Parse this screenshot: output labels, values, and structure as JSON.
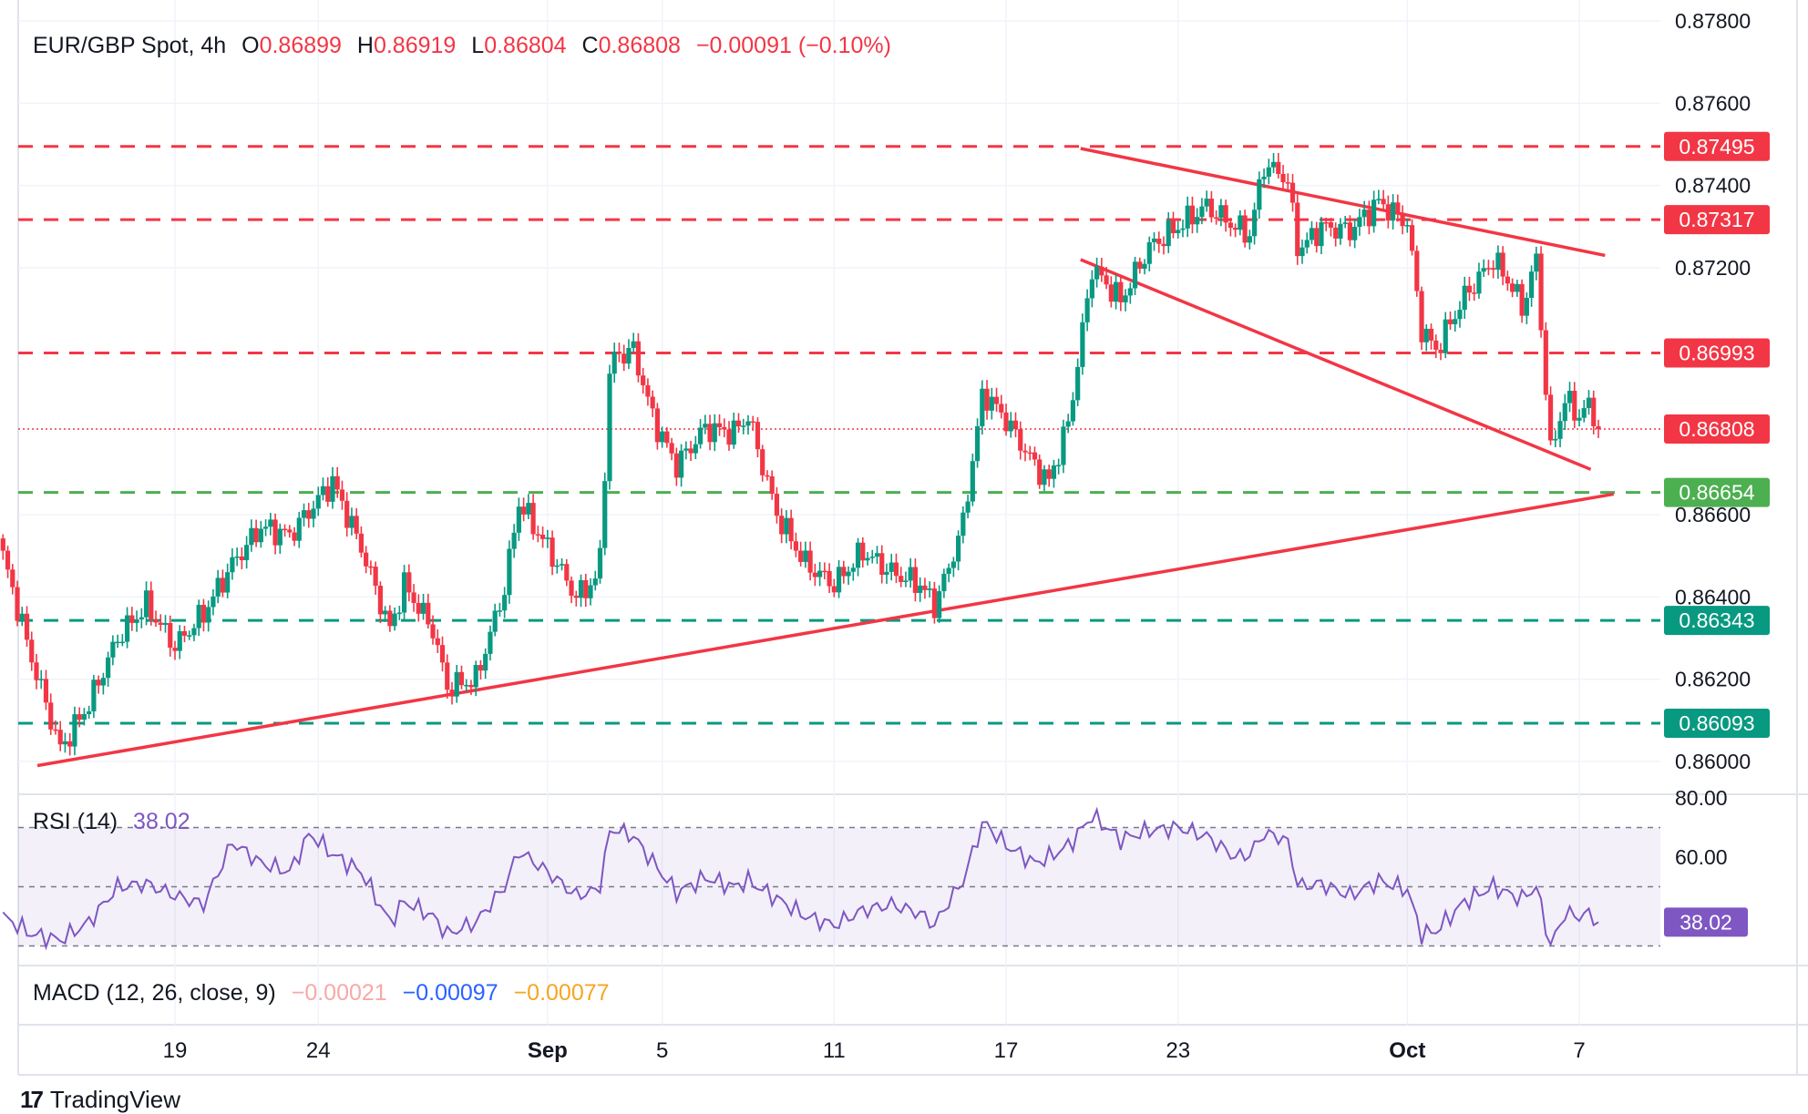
{
  "header": {
    "symbol": "EUR/GBP Spot, 4h",
    "o_label": "O",
    "o_value": "0.86899",
    "h_label": "H",
    "h_value": "0.86919",
    "l_label": "L",
    "l_value": "0.86804",
    "c_label": "C",
    "c_value": "0.86808",
    "change": "−0.00091 (−0.10%)"
  },
  "rsi": {
    "label": "RSI (14)",
    "value": "38.02",
    "badge": "38.02"
  },
  "macd": {
    "label": "MACD (12, 26, close, 9)",
    "v1": "−0.00021",
    "v2": "−0.00097",
    "v3": "−0.00077"
  },
  "footer": {
    "brand": "TradingView",
    "logo": "17"
  },
  "colors": {
    "up": "#089981",
    "down": "#f23645",
    "rsi": "#7e57c2",
    "support_green": "#4caf50",
    "support_teal": "#089981"
  },
  "chart_data": {
    "type": "candlestick",
    "title": "EUR/GBP Spot, 4h",
    "ylim": [
      0.8597,
      0.878
    ],
    "y_ticks": [
      "0.87800",
      "0.87600",
      "0.87400",
      "0.87200",
      "0.86600",
      "0.86400",
      "0.86200",
      "0.86000"
    ],
    "x_ticks": [
      {
        "label": "19",
        "day": 19,
        "bold": false
      },
      {
        "label": "24",
        "day": 24,
        "bold": false
      },
      {
        "label": "Sep",
        "day": 32,
        "bold": true
      },
      {
        "label": "5",
        "day": 36,
        "bold": false
      },
      {
        "label": "11",
        "day": 42,
        "bold": false
      },
      {
        "label": "17",
        "day": 48,
        "bold": false
      },
      {
        "label": "23",
        "day": 54,
        "bold": false
      },
      {
        "label": "Oct",
        "day": 62,
        "bold": true
      },
      {
        "label": "7",
        "day": 68,
        "bold": false
      }
    ],
    "horizontal_levels": [
      {
        "price": 0.87495,
        "label": "0.87495",
        "color": "#f23645"
      },
      {
        "price": 0.87317,
        "label": "0.87317",
        "color": "#f23645"
      },
      {
        "price": 0.86993,
        "label": "0.86993",
        "color": "#f23645"
      },
      {
        "price": 0.86654,
        "label": "0.86654",
        "color": "#4caf50"
      },
      {
        "price": 0.86343,
        "label": "0.86343",
        "color": "#089981"
      },
      {
        "price": 0.86093,
        "label": "0.86093",
        "color": "#089981"
      }
    ],
    "current_price": {
      "price": 0.86808,
      "label": "0.86808"
    },
    "trendlines": [
      {
        "name": "ascending-support",
        "from": [
          14.2,
          0.8599
        ],
        "to": [
          69.2,
          0.8665
        ]
      },
      {
        "name": "wedge-upper",
        "from": [
          50.6,
          0.8749
        ],
        "to": [
          68.9,
          0.8723
        ]
      },
      {
        "name": "wedge-lower",
        "from": [
          50.6,
          0.8722
        ],
        "to": [
          68.4,
          0.8671
        ]
      }
    ],
    "anchors": [
      [
        13.0,
        0.865
      ],
      [
        14.0,
        0.8625
      ],
      [
        15.0,
        0.8603
      ],
      [
        16.0,
        0.8614
      ],
      [
        17.0,
        0.863
      ],
      [
        18.0,
        0.8638
      ],
      [
        19.0,
        0.8628
      ],
      [
        20.0,
        0.8636
      ],
      [
        21.0,
        0.8648
      ],
      [
        22.0,
        0.8657
      ],
      [
        23.0,
        0.8655
      ],
      [
        24.5,
        0.8668
      ],
      [
        25.5,
        0.8652
      ],
      [
        26.5,
        0.8632
      ],
      [
        27.0,
        0.8643
      ],
      [
        28.0,
        0.8632
      ],
      [
        28.5,
        0.8618
      ],
      [
        29.5,
        0.862
      ],
      [
        30.5,
        0.8642
      ],
      [
        31.0,
        0.8663
      ],
      [
        32.0,
        0.8652
      ],
      [
        33.0,
        0.864
      ],
      [
        33.8,
        0.8645
      ],
      [
        34.2,
        0.8698
      ],
      [
        35.0,
        0.87
      ],
      [
        35.7,
        0.8683
      ],
      [
        36.5,
        0.8672
      ],
      [
        37.5,
        0.8681
      ],
      [
        38.5,
        0.868
      ],
      [
        39.0,
        0.8684
      ],
      [
        40.0,
        0.866
      ],
      [
        41.0,
        0.8648
      ],
      [
        42.0,
        0.8643
      ],
      [
        43.0,
        0.8651
      ],
      [
        44.0,
        0.8646
      ],
      [
        45.0,
        0.8643
      ],
      [
        45.5,
        0.8638
      ],
      [
        46.0,
        0.8647
      ],
      [
        46.5,
        0.8658
      ],
      [
        47.2,
        0.869
      ],
      [
        48.0,
        0.8683
      ],
      [
        49.0,
        0.8672
      ],
      [
        49.5,
        0.8668
      ],
      [
        50.2,
        0.8683
      ],
      [
        51.0,
        0.872
      ],
      [
        52.0,
        0.8712
      ],
      [
        53.0,
        0.8725
      ],
      [
        54.0,
        0.873
      ],
      [
        55.0,
        0.8735
      ],
      [
        56.0,
        0.873
      ],
      [
        56.5,
        0.8728
      ],
      [
        57.0,
        0.8745
      ],
      [
        57.8,
        0.8742
      ],
      [
        58.2,
        0.8724
      ],
      [
        59.0,
        0.873
      ],
      [
        60.0,
        0.8729
      ],
      [
        61.0,
        0.8736
      ],
      [
        62.0,
        0.8731
      ],
      [
        62.5,
        0.8705
      ],
      [
        63.0,
        0.87
      ],
      [
        64.0,
        0.8713
      ],
      [
        65.0,
        0.8722
      ],
      [
        65.7,
        0.8715
      ],
      [
        66.0,
        0.871
      ],
      [
        66.5,
        0.8722
      ],
      [
        67.0,
        0.8675
      ],
      [
        67.5,
        0.8688
      ],
      [
        68.0,
        0.8684
      ],
      [
        68.4,
        0.8687
      ],
      [
        68.6,
        0.8681
      ]
    ],
    "rsi_series": {
      "name": "RSI (14)",
      "ylim": [
        20,
        80
      ],
      "ticks": [
        "80.00",
        "60.00"
      ],
      "bands": [
        70,
        50,
        30
      ],
      "anchors": [
        [
          13.0,
          40
        ],
        [
          14.0,
          34
        ],
        [
          15.0,
          32
        ],
        [
          16.0,
          38
        ],
        [
          17.0,
          50
        ],
        [
          18.0,
          51
        ],
        [
          19.0,
          47
        ],
        [
          20.0,
          44
        ],
        [
          21.0,
          65
        ],
        [
          22.0,
          58
        ],
        [
          23.0,
          55
        ],
        [
          23.7,
          68
        ],
        [
          24.5,
          61
        ],
        [
          25.5,
          55
        ],
        [
          26.5,
          38
        ],
        [
          27.0,
          45
        ],
        [
          28.0,
          40
        ],
        [
          28.5,
          34
        ],
        [
          29.5,
          38
        ],
        [
          30.5,
          50
        ],
        [
          31.0,
          62
        ],
        [
          32.0,
          55
        ],
        [
          33.0,
          47
        ],
        [
          33.8,
          49
        ],
        [
          34.2,
          70
        ],
        [
          35.0,
          67
        ],
        [
          35.7,
          58
        ],
        [
          36.5,
          48
        ],
        [
          37.5,
          53
        ],
        [
          38.5,
          50
        ],
        [
          39.0,
          52
        ],
        [
          40.0,
          46
        ],
        [
          41.0,
          40
        ],
        [
          42.0,
          37
        ],
        [
          43.0,
          42
        ],
        [
          44.0,
          44
        ],
        [
          45.0,
          41
        ],
        [
          45.5,
          37
        ],
        [
          46.0,
          45
        ],
        [
          46.5,
          52
        ],
        [
          47.2,
          72
        ],
        [
          48.0,
          64
        ],
        [
          49.0,
          58
        ],
        [
          49.5,
          60
        ],
        [
          50.2,
          64
        ],
        [
          51.0,
          74
        ],
        [
          52.0,
          66
        ],
        [
          53.0,
          69
        ],
        [
          54.0,
          70
        ],
        [
          55.0,
          67
        ],
        [
          56.0,
          60
        ],
        [
          56.5,
          61
        ],
        [
          57.0,
          68
        ],
        [
          57.8,
          66
        ],
        [
          58.2,
          50
        ],
        [
          59.0,
          51
        ],
        [
          60.0,
          47
        ],
        [
          61.0,
          52
        ],
        [
          62.0,
          49
        ],
        [
          62.5,
          34
        ],
        [
          63.0,
          35
        ],
        [
          64.0,
          45
        ],
        [
          65.0,
          50
        ],
        [
          65.7,
          47
        ],
        [
          66.0,
          46
        ],
        [
          66.5,
          50
        ],
        [
          67.0,
          30
        ],
        [
          67.5,
          41
        ],
        [
          68.0,
          40
        ],
        [
          68.4,
          41
        ],
        [
          68.6,
          38
        ]
      ]
    }
  }
}
